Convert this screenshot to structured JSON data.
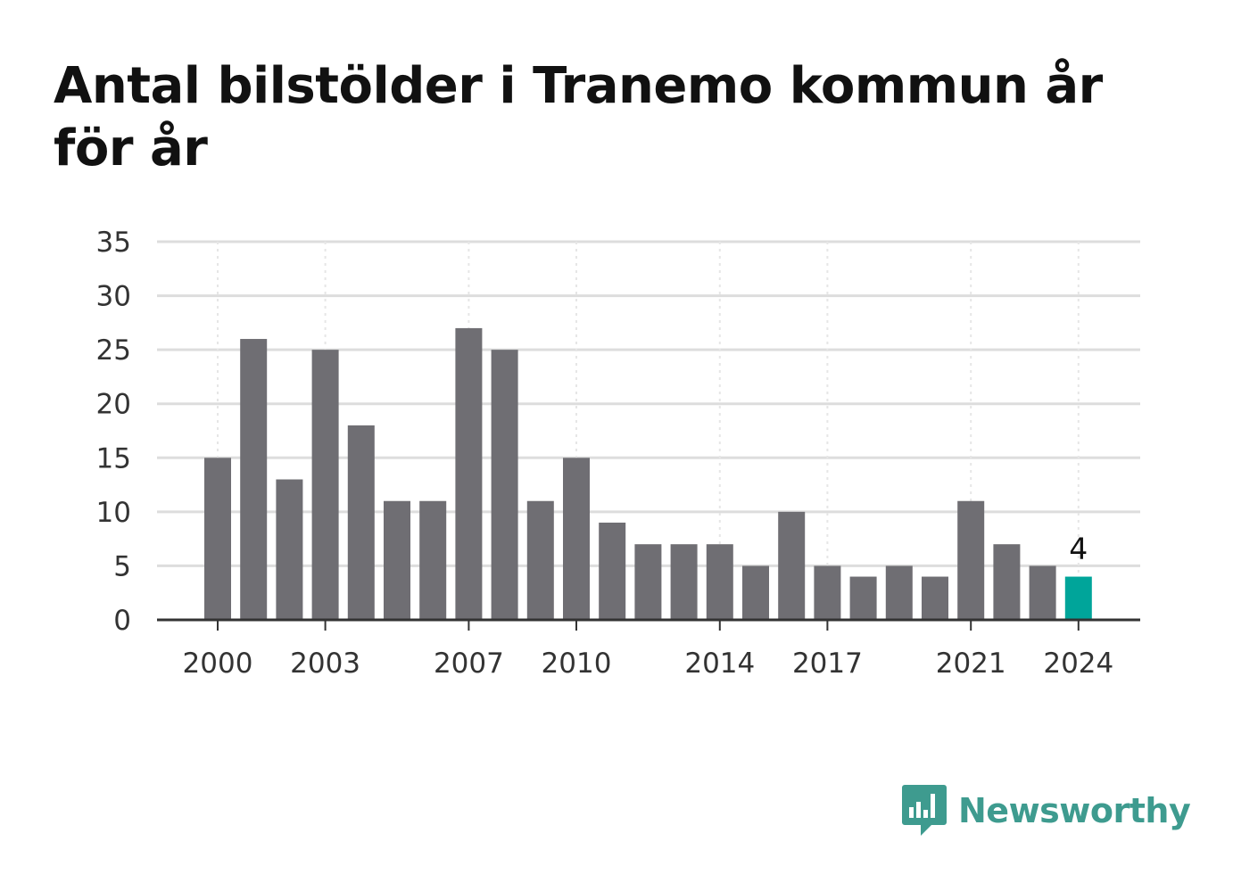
{
  "title": "Antal bilstölder i Tranemo kommun år för år",
  "brand": {
    "name": "Newsworthy",
    "icon": "newsworthy-logo-icon"
  },
  "colors": {
    "bar": "#6f6e73",
    "highlight": "#00a59a",
    "grid": "#dddddd",
    "axis": "#333333",
    "brand": "#3e9b8f"
  },
  "chart_data": {
    "type": "bar",
    "title": "Antal bilstölder i Tranemo kommun år för år",
    "xlabel": "",
    "ylabel": "",
    "categories": [
      "2000",
      "2001",
      "2002",
      "2003",
      "2004",
      "2005",
      "2006",
      "2007",
      "2008",
      "2009",
      "2010",
      "2011",
      "2012",
      "2013",
      "2014",
      "2015",
      "2016",
      "2017",
      "2018",
      "2019",
      "2020",
      "2021",
      "2022",
      "2023",
      "2024"
    ],
    "values": [
      15,
      26,
      13,
      25,
      18,
      11,
      11,
      27,
      25,
      11,
      15,
      9,
      7,
      7,
      7,
      5,
      10,
      5,
      4,
      5,
      4,
      11,
      7,
      5,
      4
    ],
    "ylim": [
      0,
      35
    ],
    "yticks": [
      0,
      5,
      10,
      15,
      20,
      25,
      30,
      35
    ],
    "xticks": [
      "2000",
      "2003",
      "2007",
      "2010",
      "2014",
      "2017",
      "2021",
      "2024"
    ],
    "highlight": {
      "category": "2024",
      "label": "4"
    },
    "grid": true,
    "legend": "none"
  }
}
